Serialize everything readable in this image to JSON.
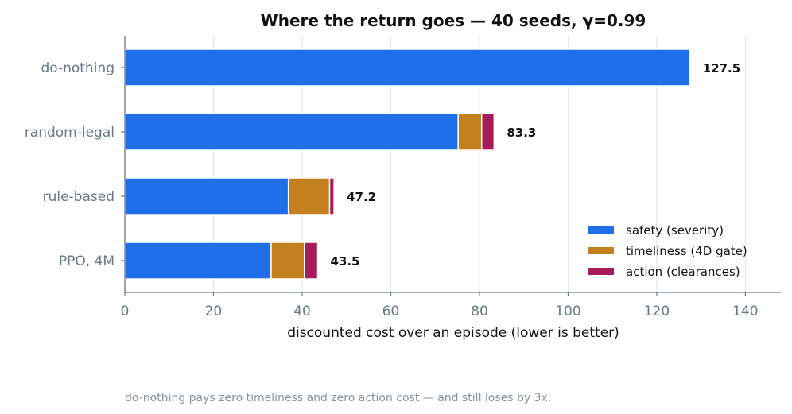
{
  "chart_data": {
    "type": "bar",
    "orientation": "horizontal",
    "stacked": true,
    "title": "Where the return goes — 40 seeds, γ=0.99",
    "xlabel": "discounted cost over an episode  (lower is better)",
    "ylabel": "",
    "xlim": [
      0,
      148
    ],
    "xticks": [
      0,
      20,
      40,
      60,
      80,
      100,
      120,
      140
    ],
    "grid": "vertical",
    "legend_position": "lower-right",
    "categories": [
      "do-nothing",
      "random-legal",
      "rule-based",
      "PPO, 4M"
    ],
    "series": [
      {
        "name": "safety (severity)",
        "color": "#1f6fe8",
        "values": [
          127.5,
          75.2,
          36.9,
          33.0
        ]
      },
      {
        "name": "timeliness (4D gate)",
        "color": "#c47f1e",
        "values": [
          0,
          5.3,
          9.3,
          7.5
        ]
      },
      {
        "name": "action (clearances)",
        "color": "#a81a5a",
        "values": [
          0,
          2.8,
          1.0,
          3.0
        ]
      }
    ],
    "totals": [
      "127.5",
      "83.3",
      "47.2",
      "43.5"
    ],
    "footnote": "do-nothing pays zero timeliness and zero action cost — and still loses by 3x."
  }
}
